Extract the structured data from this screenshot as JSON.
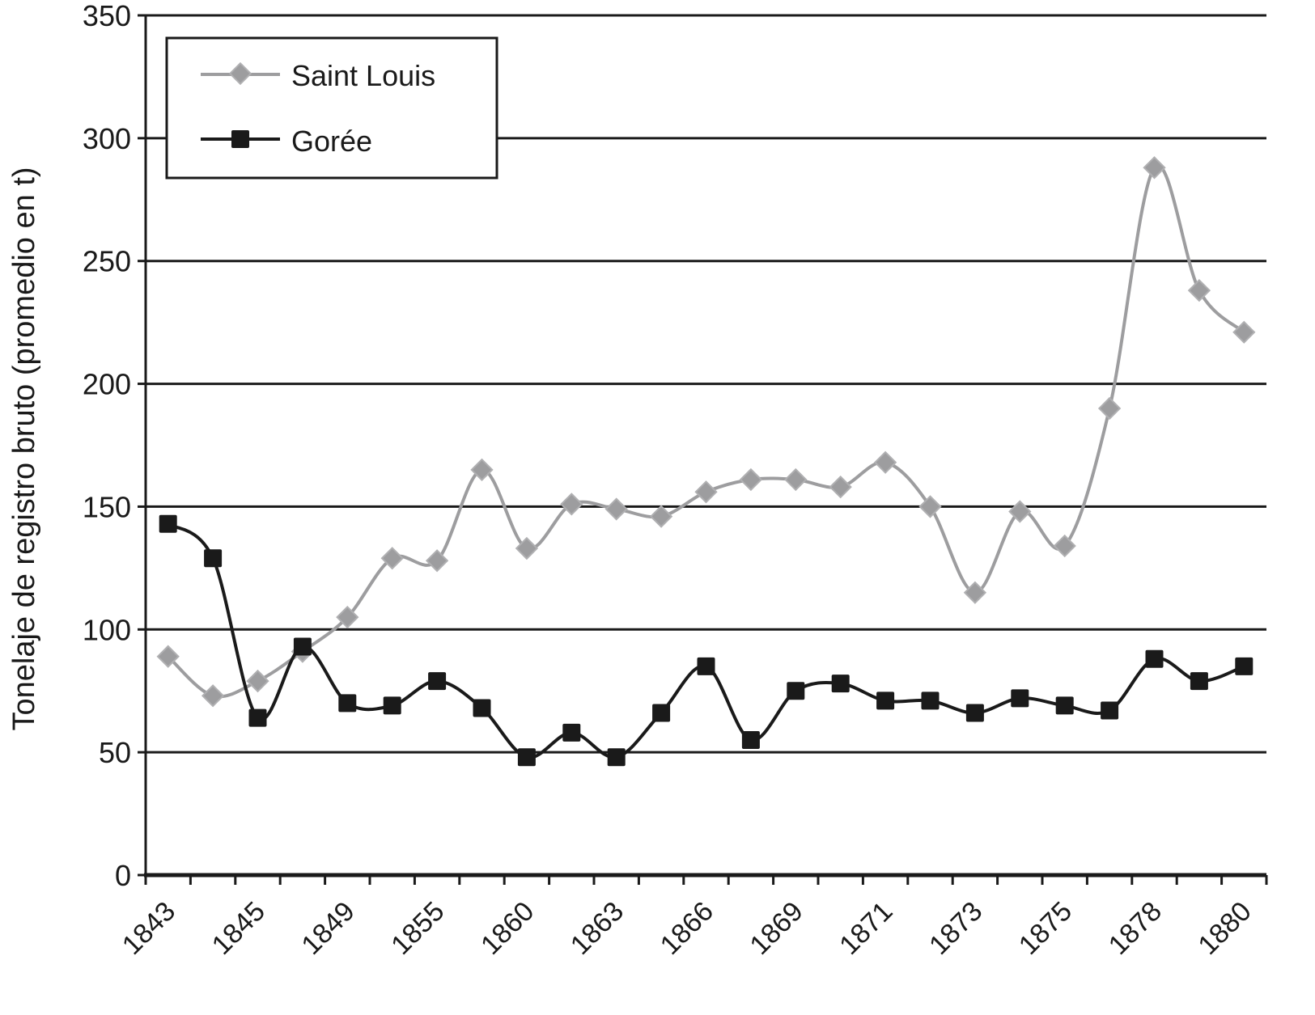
{
  "chart_data": {
    "type": "line",
    "title": "",
    "xlabel": "",
    "ylabel": "Tonelaje de registro bruto (promedio en t)",
    "ylim": [
      0,
      350
    ],
    "yticks": [
      0,
      50,
      100,
      150,
      200,
      250,
      300,
      350
    ],
    "grid": "horizontal",
    "smoothed": true,
    "legend_position": "top-left",
    "categories": [
      "1843",
      "",
      "1845",
      "",
      "1849",
      "",
      "1855",
      "",
      "1860",
      "",
      "1863",
      "",
      "1866",
      "",
      "1869",
      "",
      "1871",
      "",
      "1873",
      "",
      "1875",
      "",
      "1878",
      "",
      "1880"
    ],
    "series": [
      {
        "name": "Saint Louis",
        "color": "#9d9d9f",
        "marker": "diamond",
        "values": [
          89,
          73,
          79,
          91,
          105,
          129,
          128,
          165,
          133,
          151,
          149,
          146,
          156,
          161,
          161,
          158,
          168,
          150,
          115,
          148,
          134,
          190,
          288,
          238,
          221
        ]
      },
      {
        "name": "Gorée",
        "color": "#1a1a1a",
        "marker": "square",
        "values": [
          143,
          129,
          64,
          93,
          70,
          69,
          79,
          68,
          48,
          58,
          48,
          66,
          85,
          55,
          75,
          78,
          71,
          71,
          66,
          72,
          69,
          67,
          88,
          79,
          85
        ]
      }
    ]
  }
}
